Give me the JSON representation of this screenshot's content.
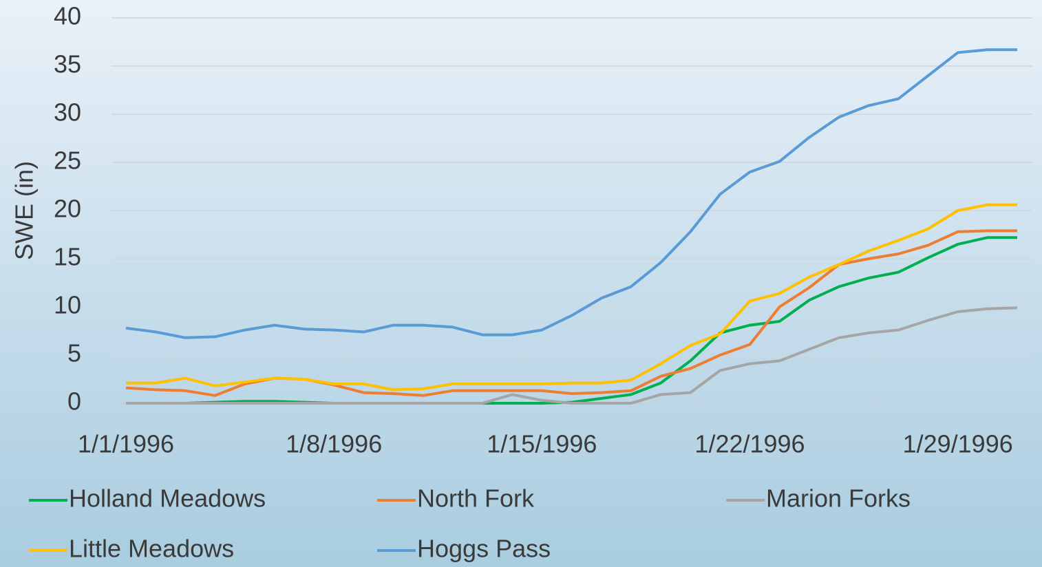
{
  "chart_data": {
    "type": "line",
    "ylabel": "SWE (in)",
    "categories": [
      "1/1/1996",
      null,
      null,
      null,
      null,
      null,
      null,
      "1/8/1996",
      null,
      null,
      null,
      null,
      null,
      null,
      "1/15/1996",
      null,
      null,
      null,
      null,
      null,
      null,
      "1/22/1996",
      null,
      null,
      null,
      null,
      null,
      null,
      "1/29/1996",
      null,
      null
    ],
    "series": [
      {
        "name": "Holland Meadows",
        "color": "#00b050",
        "values": [
          0,
          0,
          0,
          0.1,
          0.2,
          0.2,
          0.1,
          0,
          0,
          0,
          0,
          0,
          0,
          0,
          0,
          0.1,
          0.5,
          0.9,
          2.1,
          4.4,
          7.3,
          8.1,
          8.5,
          10.7,
          12.1,
          13,
          13.6,
          15.1,
          16.5,
          17.2,
          17.2
        ]
      },
      {
        "name": "North Fork",
        "color": "#ed7d31",
        "values": [
          1.6,
          1.4,
          1.3,
          0.8,
          2.0,
          2.6,
          2.5,
          1.9,
          1.1,
          1.0,
          0.8,
          1.3,
          1.3,
          1.3,
          1.3,
          1.0,
          1.1,
          1.3,
          2.8,
          3.6,
          5.0,
          6.1,
          10,
          12,
          14.4,
          15,
          15.5,
          16.4,
          17.8,
          17.9,
          17.9
        ]
      },
      {
        "name": "Marion Forks",
        "color": "#a5a5a5",
        "values": [
          0,
          0,
          0,
          0,
          0,
          0,
          0,
          0,
          0,
          0,
          0,
          0,
          0,
          0.9,
          0.3,
          0,
          0,
          0,
          0.9,
          1.1,
          3.4,
          4.1,
          4.4,
          5.6,
          6.8,
          7.3,
          7.6,
          8.6,
          9.5,
          9.8,
          9.9
        ]
      },
      {
        "name": "Little Meadows",
        "color": "#ffc000",
        "values": [
          2.1,
          2.1,
          2.6,
          1.8,
          2.2,
          2.6,
          2.5,
          2.0,
          2.0,
          1.4,
          1.5,
          2.0,
          2.0,
          2.0,
          2.0,
          2.1,
          2.1,
          2.4,
          4.1,
          6.0,
          7.2,
          10.6,
          11.4,
          13.1,
          14.4,
          15.8,
          16.9,
          18.1,
          20,
          20.6,
          20.6
        ]
      },
      {
        "name": "Hoggs Pass",
        "color": "#5b9bd5",
        "values": [
          7.8,
          7.4,
          6.8,
          6.9,
          7.6,
          8.1,
          7.7,
          7.6,
          7.4,
          8.1,
          8.1,
          7.9,
          7.1,
          7.1,
          7.6,
          9.1,
          10.9,
          12.1,
          14.6,
          17.8,
          21.7,
          24,
          25.1,
          27.6,
          29.7,
          30.9,
          31.6,
          34,
          36.4,
          36.7,
          36.7
        ]
      }
    ],
    "ylim": [
      0,
      40
    ],
    "yticks": [
      0,
      5,
      10,
      15,
      20,
      25,
      30,
      35,
      40
    ],
    "grid": true,
    "legend": "bottom"
  }
}
